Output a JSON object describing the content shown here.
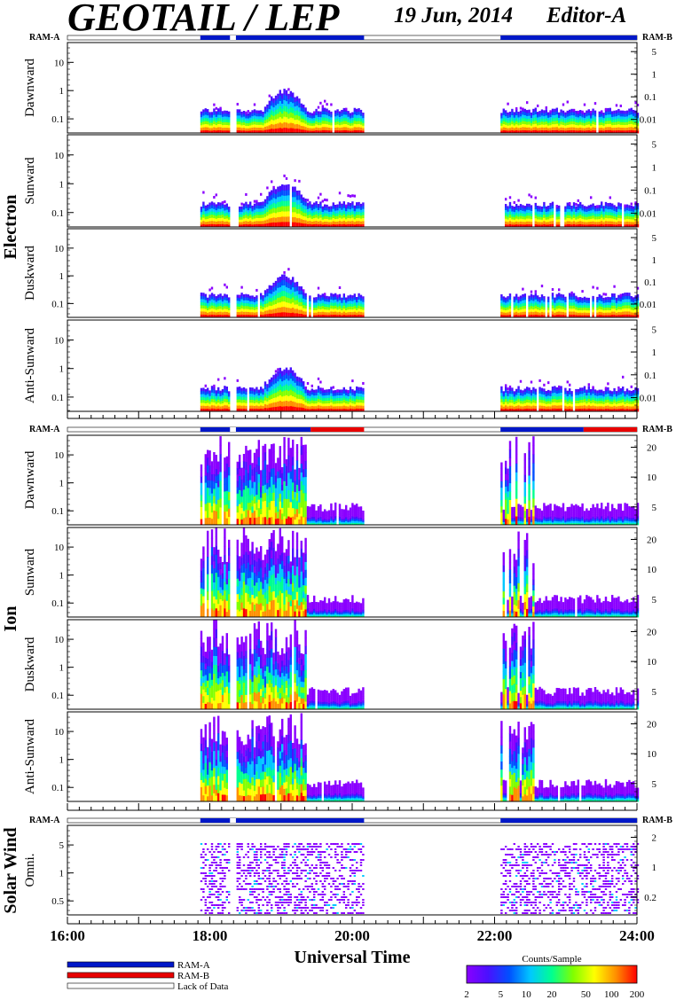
{
  "header": {
    "title": "GEOTAIL / LEP",
    "date": "19 Jun, 2014",
    "editor": "Editor-A"
  },
  "colors": {
    "ram_a": "#0018c8",
    "ram_b": "#e80000",
    "scale": [
      "#8a00ff",
      "#4a10ff",
      "#0050ff",
      "#00c8ff",
      "#00ff90",
      "#80ff00",
      "#ffff00",
      "#ff9000",
      "#ff0000"
    ]
  },
  "groups": [
    {
      "name": "Electron",
      "panels": [
        "Dawnward",
        "Sunward",
        "Duskward",
        "Anti-Sunward"
      ]
    },
    {
      "name": "Ion",
      "panels": [
        "Dawnward",
        "Sunward",
        "Duskward",
        "Anti-Sunward"
      ]
    },
    {
      "name": "Solar Wind",
      "panels": [
        "Omni."
      ]
    }
  ],
  "ram_labels": {
    "left": "RAM-A",
    "right": "RAM-B"
  },
  "legend": {
    "items": [
      {
        "label": "RAM-A",
        "color": "#0018c8"
      },
      {
        "label": "RAM-B",
        "color": "#e80000"
      },
      {
        "label": "Lack of Data",
        "color": "#ffffff"
      }
    ]
  },
  "chart_data": {
    "type": "heatmap",
    "xlabel": "Universal Time",
    "x_range": [
      "16:00",
      "24:00"
    ],
    "x_ticks": [
      "16:00",
      "18:00",
      "20:00",
      "22:00",
      "24:00"
    ],
    "data_intervals": [
      [
        "17:52",
        "20:10"
      ],
      [
        "22:05",
        "24:00"
      ]
    ],
    "data_gaps": [
      "18:17",
      "18:22"
    ],
    "electron_left_ticks": [
      "10",
      "1",
      "0.1"
    ],
    "electron_right_ticks": [
      "5",
      "1",
      "0.1",
      "0.01"
    ],
    "ion_left_ticks": [
      "10",
      "1",
      "0.1"
    ],
    "ion_right_ticks": [
      "20",
      "10",
      "5"
    ],
    "solarwind_left_ticks": [
      "5",
      "1",
      "0.5"
    ],
    "solarwind_right_ticks": [
      "2",
      "1",
      "0.2"
    ],
    "colorbar": {
      "title": "Counts/Sample",
      "ticks": [
        "2",
        "5",
        "10",
        "20",
        "50",
        "100",
        "200"
      ]
    }
  }
}
